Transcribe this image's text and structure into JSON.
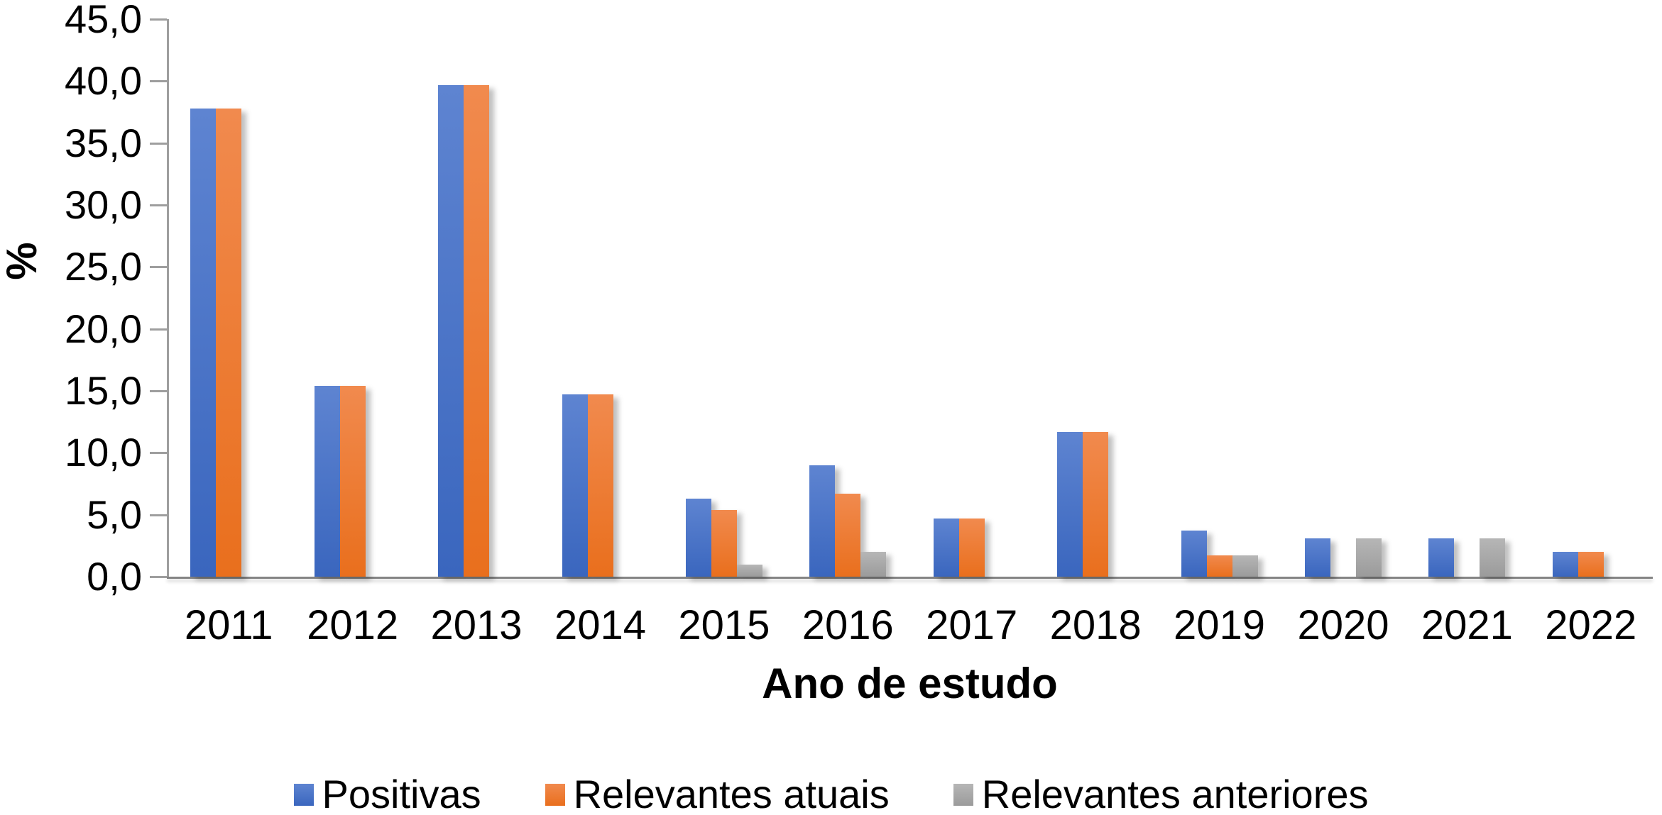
{
  "chart_data": {
    "type": "bar",
    "xlabel": "Ano de estudo",
    "ylabel": "%",
    "categories": [
      "2011",
      "2012",
      "2013",
      "2014",
      "2015",
      "2016",
      "2017",
      "2018",
      "2019",
      "2020",
      "2021",
      "2022"
    ],
    "series": [
      {
        "name": "Positivas",
        "color": "#4472C4",
        "gradient": [
          "#5E84D1",
          "#3A66BE"
        ],
        "values": [
          37.8,
          15.4,
          39.7,
          14.7,
          6.3,
          9.0,
          4.7,
          11.7,
          3.7,
          3.1,
          3.1,
          2.0
        ]
      },
      {
        "name": "Relevantes atuais",
        "color": "#ED7D31",
        "gradient": [
          "#F18A4E",
          "#E96F1D"
        ],
        "values": [
          37.8,
          15.4,
          39.7,
          14.7,
          5.4,
          6.7,
          4.7,
          11.7,
          1.7,
          null,
          null,
          2.0
        ]
      },
      {
        "name": "Relevantes anteriores",
        "color": "#A5A5A5",
        "gradient": [
          "#B6B6B6",
          "#9B9B9B"
        ],
        "values": [
          null,
          null,
          null,
          null,
          1.0,
          2.0,
          null,
          null,
          1.7,
          3.1,
          3.1,
          null
        ]
      }
    ],
    "ylim": [
      0,
      45
    ],
    "ytick_interval": 5,
    "ytick_labels": [
      "0,0",
      "5,0",
      "10,0",
      "15,0",
      "20,0",
      "25,0",
      "30,0",
      "35,0",
      "40,0",
      "45,0"
    ],
    "grid": false,
    "legend_position": "bottom",
    "axis_color": "#9E9E9E",
    "baseline_color": "#848484",
    "text_color": "#000000"
  }
}
